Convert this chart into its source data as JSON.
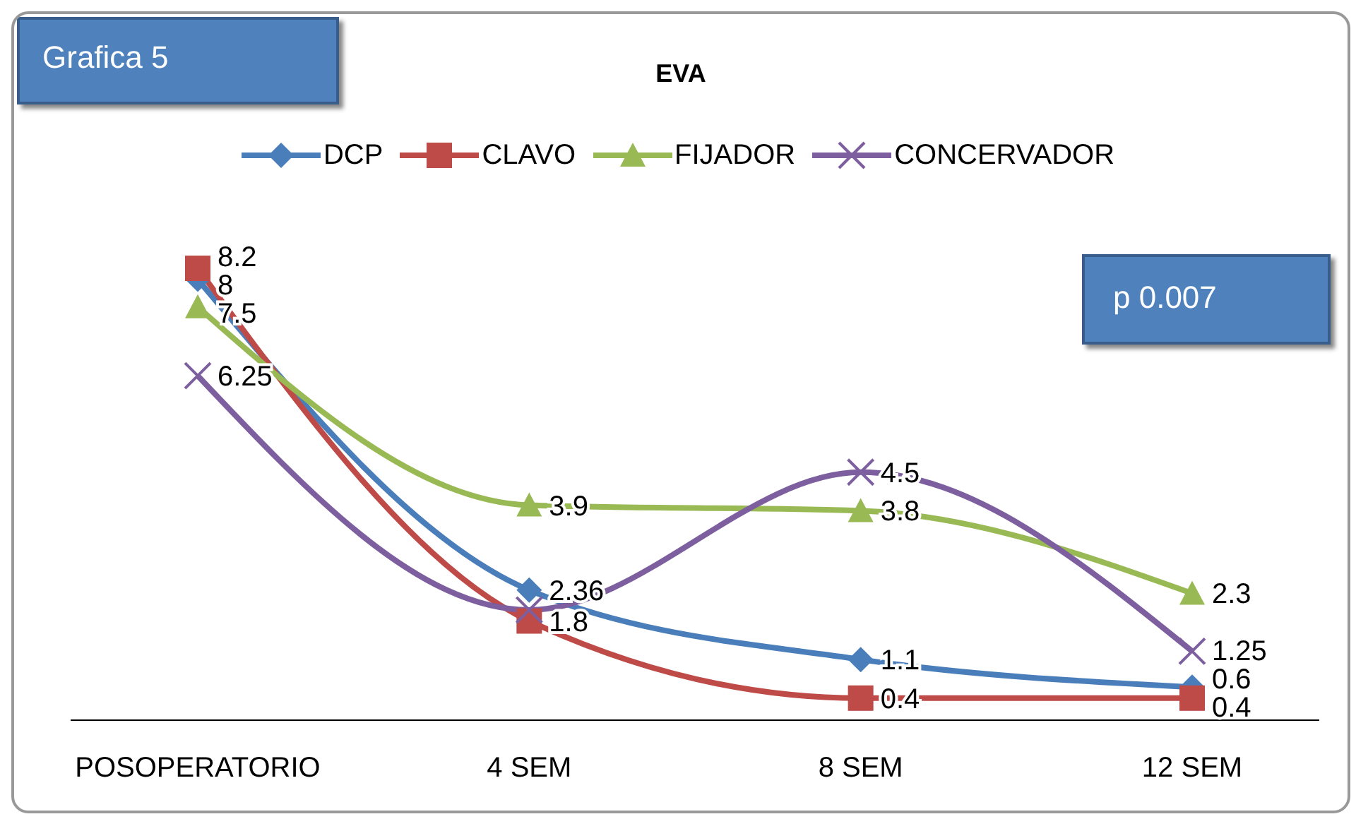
{
  "chart_data": {
    "type": "line",
    "title": "EVA",
    "categories": [
      "POSOPERATORIO",
      "4 SEM",
      "8 SEM",
      "12 SEM"
    ],
    "series": [
      {
        "name": "DCP",
        "color": "#4a7ebb",
        "marker": "diamond",
        "values": [
          8,
          2.36,
          1.1,
          0.6
        ]
      },
      {
        "name": "CLAVO",
        "color": "#be4b48",
        "marker": "square",
        "values": [
          8.2,
          1.8,
          0.4,
          0.4
        ]
      },
      {
        "name": "FIJADOR",
        "color": "#98b954",
        "marker": "triangle",
        "values": [
          7.5,
          3.9,
          3.8,
          2.3
        ]
      },
      {
        "name": "CONCERVADOR",
        "color": "#7d5fa0",
        "marker": "cross",
        "values": [
          6.25,
          2,
          4.5,
          1.25
        ],
        "value_labels": [
          "6.25",
          null,
          "4.5",
          "1.25"
        ]
      }
    ],
    "data_labels": true,
    "legend": "top",
    "grid": false,
    "annotations": [
      "Grafica 5",
      "p 0.007"
    ]
  }
}
